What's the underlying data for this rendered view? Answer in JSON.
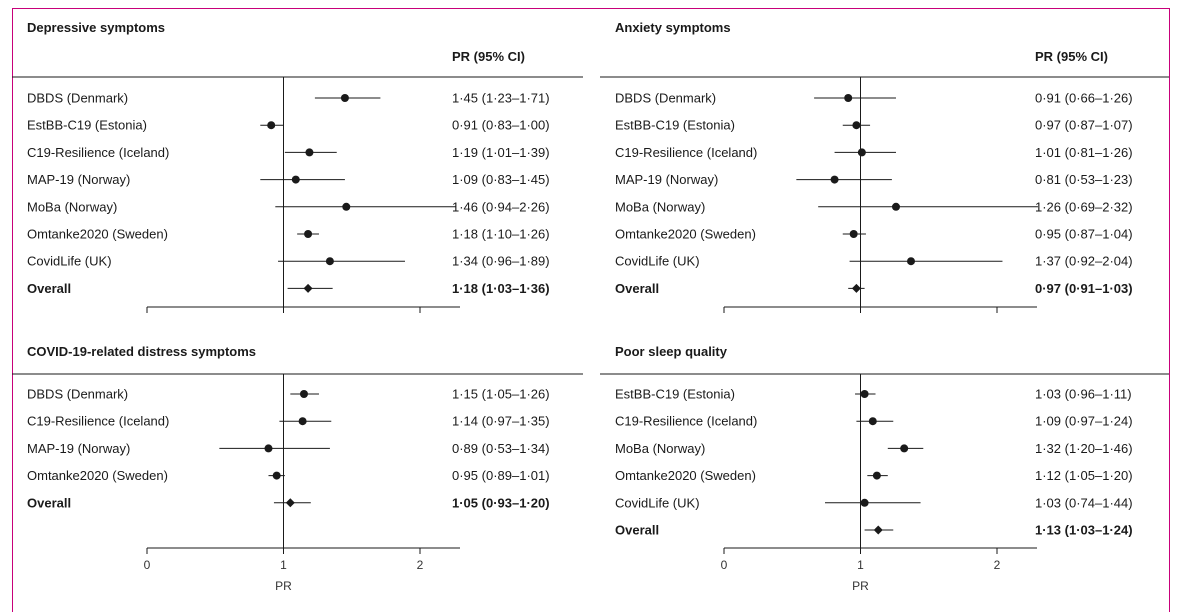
{
  "colors": {
    "frame": "#c8007a",
    "ink": "#1a1a1a"
  },
  "column_header": "PR (95% CI)",
  "chart_data": [
    {
      "type": "forest",
      "title": "Depressive symptoms",
      "xlabel": "",
      "xlim": [
        0,
        2.3
      ],
      "xticks": [],
      "reference_line": 1,
      "rows": [
        {
          "label": "DBDS (Denmark)",
          "pr": 1.45,
          "lo": 1.23,
          "hi": 1.71,
          "text": "1·45 (1·23–1·71)",
          "overall": false
        },
        {
          "label": "EstBB-C19 (Estonia)",
          "pr": 0.91,
          "lo": 0.83,
          "hi": 1.0,
          "text": "0·91 (0·83–1·00)",
          "overall": false
        },
        {
          "label": "C19-Resilience (Iceland)",
          "pr": 1.19,
          "lo": 1.01,
          "hi": 1.39,
          "text": "1·19 (1·01–1·39)",
          "overall": false
        },
        {
          "label": "MAP-19 (Norway)",
          "pr": 1.09,
          "lo": 0.83,
          "hi": 1.45,
          "text": "1·09 (0·83–1·45)",
          "overall": false
        },
        {
          "label": "MoBa (Norway)",
          "pr": 1.46,
          "lo": 0.94,
          "hi": 2.26,
          "text": "1·46 (0·94–2·26)",
          "overall": false
        },
        {
          "label": "Omtanke2020 (Sweden)",
          "pr": 1.18,
          "lo": 1.1,
          "hi": 1.26,
          "text": "1·18 (1·10–1·26)",
          "overall": false
        },
        {
          "label": "CovidLife (UK)",
          "pr": 1.34,
          "lo": 0.96,
          "hi": 1.89,
          "text": "1·34 (0·96–1·89)",
          "overall": false
        },
        {
          "label": "Overall",
          "pr": 1.18,
          "lo": 1.03,
          "hi": 1.36,
          "text": "1·18 (1·03–1·36)",
          "overall": true
        }
      ]
    },
    {
      "type": "forest",
      "title": "Anxiety symptoms",
      "xlabel": "",
      "xlim": [
        0,
        2.3
      ],
      "xticks": [],
      "reference_line": 1,
      "rows": [
        {
          "label": "DBDS (Denmark)",
          "pr": 0.91,
          "lo": 0.66,
          "hi": 1.26,
          "text": "0·91 (0·66–1·26)",
          "overall": false
        },
        {
          "label": "EstBB-C19 (Estonia)",
          "pr": 0.97,
          "lo": 0.87,
          "hi": 1.07,
          "text": "0·97 (0·87–1·07)",
          "overall": false
        },
        {
          "label": "C19-Resilience (Iceland)",
          "pr": 1.01,
          "lo": 0.81,
          "hi": 1.26,
          "text": "1·01 (0·81–1·26)",
          "overall": false
        },
        {
          "label": "MAP-19 (Norway)",
          "pr": 0.81,
          "lo": 0.53,
          "hi": 1.23,
          "text": "0·81 (0·53–1·23)",
          "overall": false
        },
        {
          "label": "MoBa (Norway)",
          "pr": 1.26,
          "lo": 0.69,
          "hi": 2.32,
          "text": "1·26 (0·69–2·32)",
          "overall": false
        },
        {
          "label": "Omtanke2020 (Sweden)",
          "pr": 0.95,
          "lo": 0.87,
          "hi": 1.04,
          "text": "0·95 (0·87–1·04)",
          "overall": false
        },
        {
          "label": "CovidLife (UK)",
          "pr": 1.37,
          "lo": 0.92,
          "hi": 2.04,
          "text": "1·37 (0·92–2·04)",
          "overall": false
        },
        {
          "label": "Overall",
          "pr": 0.97,
          "lo": 0.91,
          "hi": 1.03,
          "text": "0·97 (0·91–1·03)",
          "overall": true
        }
      ]
    },
    {
      "type": "forest",
      "title": "COVID-19-related distress symptoms",
      "xlabel": "PR",
      "xlim": [
        0,
        2.3
      ],
      "xticks": [
        0,
        1,
        2
      ],
      "reference_line": 1,
      "rows": [
        {
          "label": "DBDS (Denmark)",
          "pr": 1.15,
          "lo": 1.05,
          "hi": 1.26,
          "text": "1·15 (1·05–1·26)",
          "overall": false
        },
        {
          "label": "C19-Resilience (Iceland)",
          "pr": 1.14,
          "lo": 0.97,
          "hi": 1.35,
          "text": "1·14 (0·97–1·35)",
          "overall": false
        },
        {
          "label": "MAP-19 (Norway)",
          "pr": 0.89,
          "lo": 0.53,
          "hi": 1.34,
          "text": "0·89 (0·53–1·34)",
          "overall": false
        },
        {
          "label": "Omtanke2020 (Sweden)",
          "pr": 0.95,
          "lo": 0.89,
          "hi": 1.01,
          "text": "0·95 (0·89–1·01)",
          "overall": false
        },
        {
          "label": "Overall",
          "pr": 1.05,
          "lo": 0.93,
          "hi": 1.2,
          "text": "1·05 (0·93–1·20)",
          "overall": true
        }
      ]
    },
    {
      "type": "forest",
      "title": "Poor sleep quality",
      "xlabel": "PR",
      "xlim": [
        0,
        2.3
      ],
      "xticks": [
        0,
        1,
        2
      ],
      "reference_line": 1,
      "rows": [
        {
          "label": "EstBB-C19 (Estonia)",
          "pr": 1.03,
          "lo": 0.96,
          "hi": 1.11,
          "text": "1·03 (0·96–1·11)",
          "overall": false
        },
        {
          "label": "C19-Resilience (Iceland)",
          "pr": 1.09,
          "lo": 0.97,
          "hi": 1.24,
          "text": "1·09 (0·97–1·24)",
          "overall": false
        },
        {
          "label": "MoBa (Norway)",
          "pr": 1.32,
          "lo": 1.2,
          "hi": 1.46,
          "text": "1·32 (1·20–1·46)",
          "overall": false
        },
        {
          "label": "Omtanke2020 (Sweden)",
          "pr": 1.12,
          "lo": 1.05,
          "hi": 1.2,
          "text": "1·12 (1·05–1·20)",
          "overall": false
        },
        {
          "label": "CovidLife (UK)",
          "pr": 1.03,
          "lo": 0.74,
          "hi": 1.44,
          "text": "1·03 (0·74–1·44)",
          "overall": false
        },
        {
          "label": "Overall",
          "pr": 1.13,
          "lo": 1.03,
          "hi": 1.24,
          "text": "1·13 (1·03–1·24)",
          "overall": true
        }
      ]
    }
  ]
}
